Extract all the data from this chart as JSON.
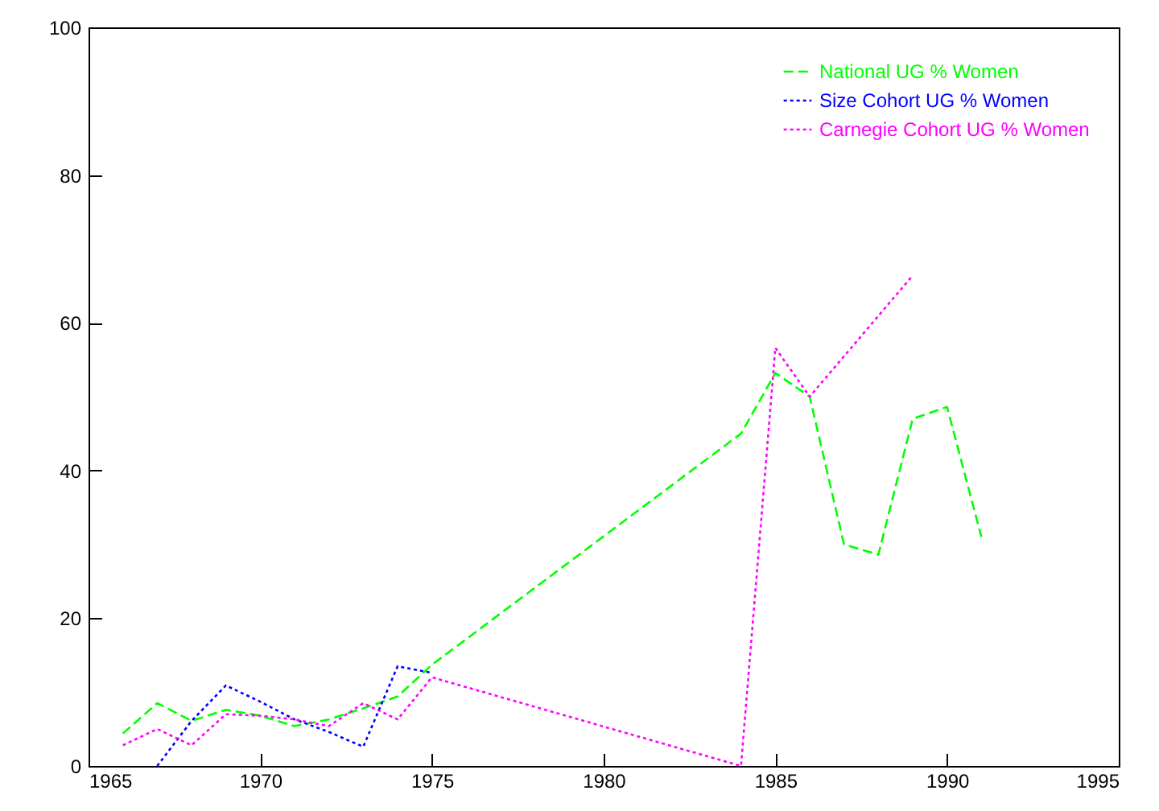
{
  "chart_data": {
    "type": "line",
    "xlim": [
      1965,
      1995
    ],
    "xticks": [
      1965,
      1970,
      1975,
      1980,
      1985,
      1990,
      1995
    ],
    "ylim": [
      0,
      100
    ],
    "yticks": [
      0,
      20,
      40,
      60,
      80,
      100
    ],
    "grid": false,
    "legend": "top right",
    "marker": "none",
    "series": [
      {
        "name": "National UG % Women",
        "color": "#00ff00",
        "line_style": "dashed",
        "x": [
          1966,
          1967,
          1968,
          1969,
          1970,
          1971,
          1972,
          1973,
          1974,
          1975,
          1984,
          1985,
          1986,
          1987,
          1988,
          1989,
          1990,
          1991
        ],
        "values": [
          4.4,
          8.5,
          6.1,
          7.6,
          6.8,
          5.4,
          6.3,
          7.8,
          9.4,
          13.7,
          45,
          53.2,
          50,
          30,
          28.6,
          47,
          48.6,
          31
        ]
      },
      {
        "name": "Size Cohort UG % Women",
        "color": "#0000ff",
        "line_style": "dotted",
        "x": [
          1967,
          1968,
          1969,
          1970,
          1971,
          1972,
          1973,
          1974,
          1975
        ],
        "values": [
          0,
          6.1,
          10.9,
          8.7,
          6.3,
          4.6,
          2.6,
          13.5,
          12.6
        ]
      },
      {
        "name": "Carnegie Cohort UG % Women",
        "color": "#ff00ff",
        "line_style": "dotted",
        "x": [
          1966,
          1967,
          1968,
          1969,
          1970,
          1971,
          1972,
          1973,
          1974,
          1975,
          1984,
          1985,
          1986,
          1989
        ],
        "values": [
          2.8,
          5,
          2.8,
          7,
          6.8,
          6.3,
          5.4,
          8.5,
          6.3,
          12,
          0,
          56.6,
          50,
          66.4
        ]
      }
    ]
  }
}
